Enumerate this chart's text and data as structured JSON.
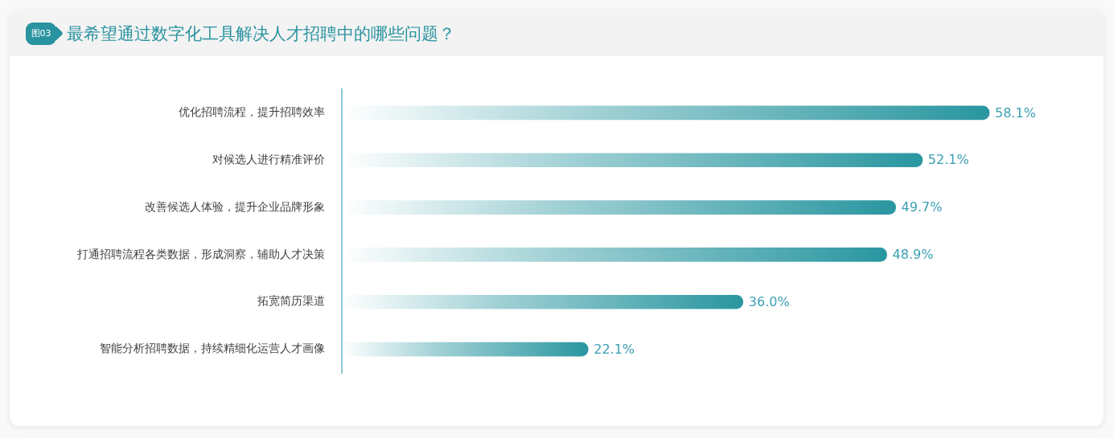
{
  "chart_data": {
    "type": "bar",
    "orientation": "horizontal",
    "title": "最希望通过数字化工具解决人才招聘中的哪些问题？",
    "annotations": [
      "图03"
    ],
    "categories": [
      "优化招聘流程，提升招聘效率",
      "对候选人进行精准评价",
      "改善候选人体验，提升企业品牌形象",
      "打通招聘流程各类数据，形成洞察，辅助人才决策",
      "拓宽简历渠道",
      "智能分析招聘数据，持续精细化运营人才画像"
    ],
    "values": [
      58.1,
      52.1,
      49.7,
      48.9,
      36.0,
      22.1
    ],
    "value_labels": [
      "58.1%",
      "52.1%",
      "49.7%",
      "48.9%",
      "36.0%",
      "22.1%"
    ],
    "color": "#2996a0",
    "legend": false,
    "tick_labels": "y"
  }
}
